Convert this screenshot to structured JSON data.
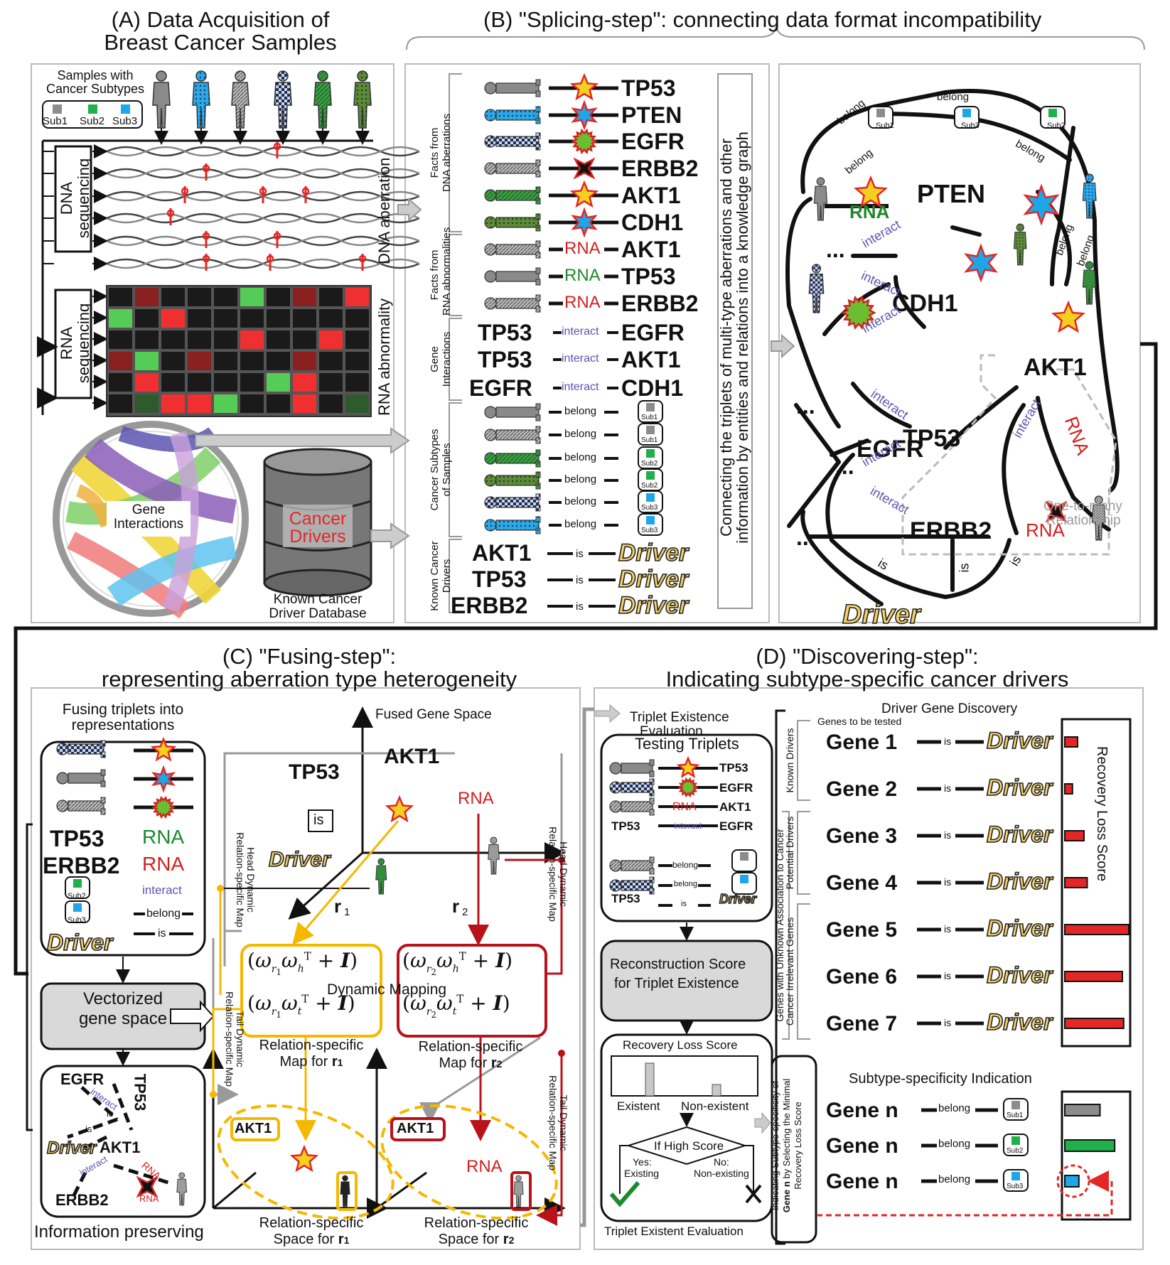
{
  "panel_a": {
    "title_line1": "(A) Data Acquisition of",
    "title_line2": "Breast Cancer Samples",
    "samples_label_line1": "Samples with",
    "samples_label_line2": "Cancer Subtypes",
    "subtypes": [
      "Sub1",
      "Sub2",
      "Sub3"
    ],
    "dna_seq_line1": "DNA",
    "dna_seq_line2": "sequencing",
    "dna_aberration": "DNA aberration",
    "rna_seq_line1": "RNA",
    "rna_seq_line2": "sequencing",
    "rna_abnormality": "RNA abnormality",
    "gene_interactions_line1": "Gene",
    "gene_interactions_line2": "Interactions",
    "cancer_drivers_line1": "Cancer",
    "cancer_drivers_line2": "Drivers",
    "database_line1": "Known Cancer",
    "database_line2": "Driver Database"
  },
  "panel_b": {
    "title": "(B) \"Splicing-step\": connecting data format incompatibility",
    "groups": [
      "Facts from DNA aberrations",
      "Facts from RNA abnormalities",
      "Gene Interactions",
      "Cancer Subtypes of Samples",
      "Known Cancer Drivers"
    ],
    "group_lines": [
      [
        "Facts from",
        "DNA aberrations"
      ],
      [
        "Facts from",
        "RNA abnormalities"
      ],
      [
        "Gene",
        "Interactions"
      ],
      [
        "Cancer Subtypes",
        "of Samples"
      ],
      [
        "Known Cancer",
        "Drivers"
      ]
    ],
    "dna_genes": [
      "TP53",
      "PTEN",
      "EGFR",
      "ERBB2",
      "AKT1",
      "CDH1"
    ],
    "rna_triplets": [
      {
        "rel": "RNA",
        "gene": "AKT1"
      },
      {
        "rel": "RNA",
        "gene": "TP53"
      },
      {
        "rel": "RNA",
        "gene": "ERBB2"
      }
    ],
    "interactions": [
      {
        "head": "TP53",
        "rel": "interact",
        "tail": "EGFR"
      },
      {
        "head": "TP53",
        "rel": "interact",
        "tail": "AKT1"
      },
      {
        "head": "EGFR",
        "rel": "interact",
        "tail": "CDH1"
      }
    ],
    "belong_label": "belong",
    "subtype_tails": [
      "Sub1",
      "Sub1",
      "Sub2",
      "Sub2",
      "Sub3",
      "Sub3"
    ],
    "drivers": [
      {
        "head": "AKT1",
        "rel": "is",
        "tail": "Driver"
      },
      {
        "head": "TP53",
        "rel": "is",
        "tail": "Driver"
      },
      {
        "head": "ERBB2",
        "rel": "is",
        "tail": "Driver"
      }
    ],
    "connect_line1": "Connecting the triplets of multi-type aberrations and other",
    "connect_line2": "information by entities and relations into a knowledge graph",
    "kg": {
      "belong": "belong",
      "interact": "interact",
      "is": "is",
      "rna": "RNA",
      "genes": [
        "PTEN",
        "CDH1",
        "EGFR",
        "AKT1",
        "TP53",
        "ERBB2"
      ],
      "ellipsis": "...",
      "driver": "Driver",
      "subs": [
        "Sub1",
        "Sub3",
        "Sub2"
      ],
      "one_to_many_line1": "One-to-many",
      "one_to_many_line2": "Relationship"
    }
  },
  "panel_c": {
    "title_line1": "(C) \"Fusing-step\":",
    "title_line2": "representing aberration type heterogeneity",
    "fusing_line1": "Fusing triplets into",
    "fusing_line2": "representations",
    "legend_genes": [
      "TP53",
      "ERBB2"
    ],
    "legend_rels": [
      "RNA",
      "RNA",
      "interact",
      "belong",
      "is"
    ],
    "legend_subs": [
      "Sub2",
      "Sub3"
    ],
    "driver": "Driver",
    "vectorized_line1": "Vectorized",
    "vectorized_line2": "gene space",
    "graph_nodes": [
      "EGFR",
      "TP53",
      "Driver",
      "AKT1",
      "ERBB2"
    ],
    "graph_rels": [
      "interact",
      "is",
      "is",
      "interact",
      "RNA",
      "RNA"
    ],
    "info_preserving": "Information preserving",
    "fused_gene_space": "Fused Gene Space",
    "space_genes": [
      "TP53",
      "AKT1"
    ],
    "is_box": "is",
    "rna": "RNA",
    "r1": "r",
    "r1_sub": "1",
    "r2": "r",
    "r2_sub": "2",
    "dynamic_mapping": "Dynamic Mapping",
    "head_map": [
      "Head Dynamic",
      "Relation-specific Map"
    ],
    "tail_map": [
      "Tail Dynamic",
      "Relation-specific Map"
    ],
    "map_r1_line1": "Relation-specific",
    "map_r1_line2": "Map for ",
    "map_r2_line1": "Relation-specific",
    "map_r2_line2": "Map for ",
    "space_r1_line1": "Relation-specific",
    "space_r1_line2": "Space for ",
    "space_r2_line1": "Relation-specific",
    "space_r2_line2": "Space for ",
    "akt1": "AKT1"
  },
  "panel_d": {
    "title_line1": "(D) \"Discovering-step\":",
    "title_line2": "Indicating subtype-specific cancer drivers",
    "tee_line1": "Triplet Existence",
    "tee_line2": "Evaluation",
    "testing_triplets": "Testing Triplets",
    "testing_genes": [
      "TP53",
      "EGFR",
      "AKT1",
      "EGFR",
      "TP53"
    ],
    "testing_rels": [
      "RNA",
      "interact",
      "belong",
      "belong",
      "is"
    ],
    "testing_head": "TP53",
    "recon_line1": "Reconstruction Score",
    "recon_line2": "for Triplet Existence",
    "rls_title": "Recovery Loss Score",
    "existent": "Existent",
    "non_existent": "Non-existent",
    "if_high": "If High Score",
    "yes_line1": "Yes:",
    "yes_line2": "Existing",
    "no_line1": "No:",
    "no_line2": "Non-existing",
    "tee_footer": "Triplet Existent Evaluation",
    "driver_discovery": "Driver Gene Discovery",
    "genes_tested": "Genes to be tested",
    "known_drivers": "Known Drivers",
    "potential_drivers": "Potential Drivers",
    "irrelevant": "Cancer Irrelevant Genes",
    "unknown_assoc": "Genes with Unknown Association to Cancer",
    "recovery_loss_score": "Recovery Loss Score",
    "genes": [
      "Gene 1",
      "Gene 2",
      "Gene 3",
      "Gene 4",
      "Gene 5",
      "Gene 6",
      "Gene 7"
    ],
    "rel_is": "is",
    "driver": "Driver",
    "subtype_spec": "Subtype-specificity Indication",
    "gene_n": "Gene n",
    "belong": "belong",
    "subs": [
      "Sub1",
      "Sub2",
      "Sub3"
    ],
    "indicating_line1": "Indicating Subtype-specificity of",
    "indicating_line2a": "Gene n",
    "indicating_line2b": " by Selecting the Minimal",
    "indicating_line3": "Recovery Loss Score"
  },
  "chart_data": {
    "type": "bar",
    "title": "Recovery Loss Score",
    "categories": [
      "Gene 1",
      "Gene 2",
      "Gene 3",
      "Gene 4",
      "Gene 5",
      "Gene 6",
      "Gene 7"
    ],
    "values": [
      0.2,
      0.12,
      0.3,
      0.35,
      1.0,
      0.9,
      0.92
    ]
  },
  "subtype_chart": {
    "type": "bar",
    "categories": [
      "Sub1",
      "Sub2",
      "Sub3"
    ],
    "values": [
      0.55,
      0.78,
      0.22
    ]
  },
  "colors": {
    "sub1": "#8c8c8c",
    "sub2": "#20b04a",
    "sub3": "#1ea7e8",
    "red": "#e32626",
    "gold": "#f5b800",
    "dark_red": "#b8121b",
    "interact": "#5a55b0",
    "gray_box": "#d9d9d9"
  }
}
